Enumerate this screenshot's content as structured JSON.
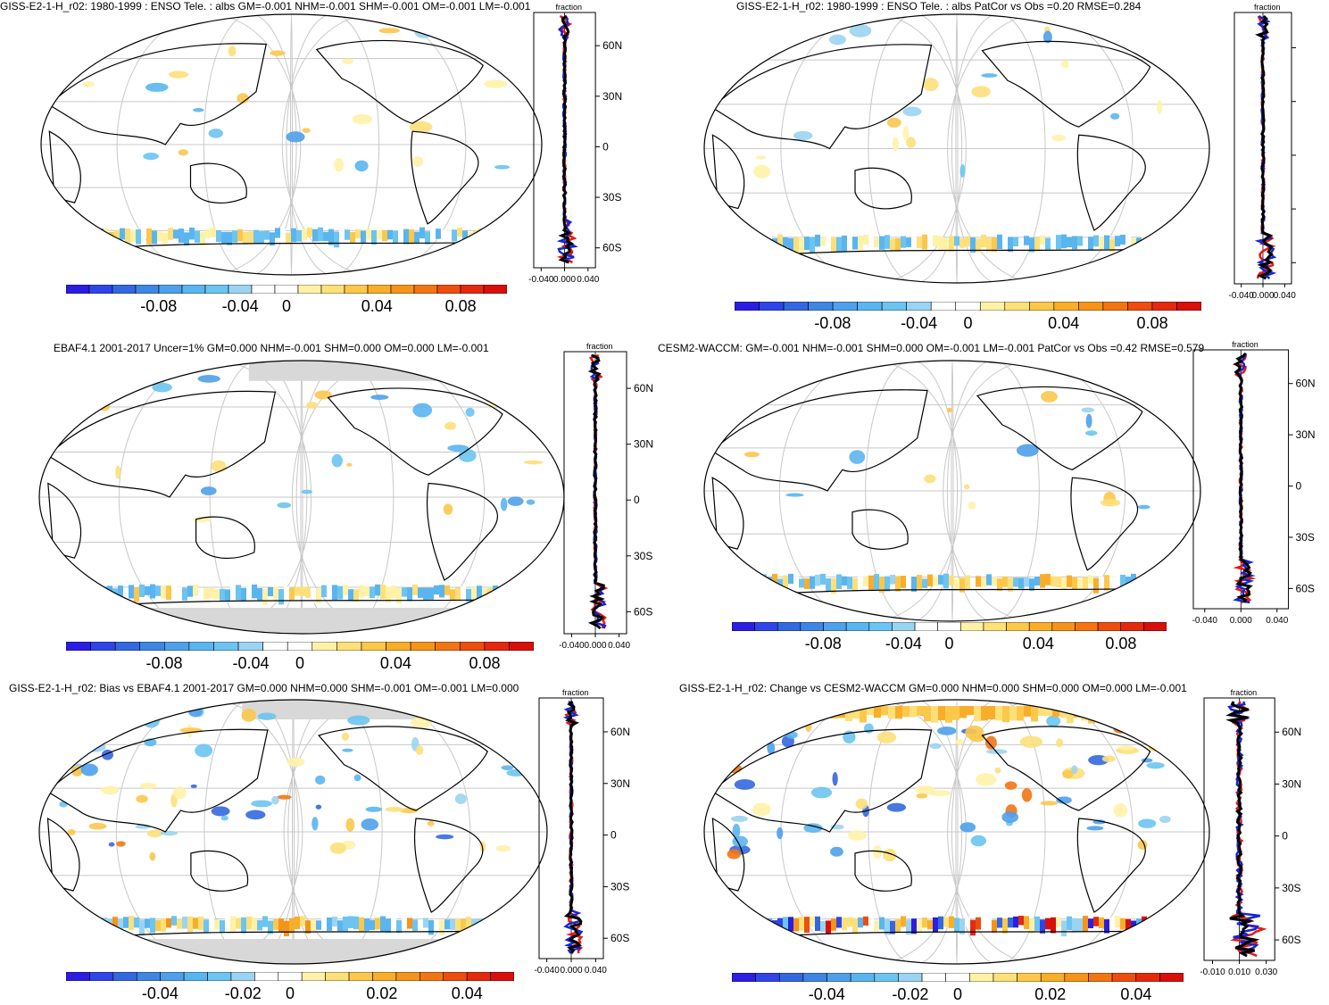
{
  "panels": [
    {
      "title": "GISS-E2-1-H_r02: 1980-1999 : ENSO Tele. : albs GM=-0.001 NHM=-0.001 SHM=-0.001 OM=-0.001 LM=-0.001",
      "zonal_header": "fraction",
      "zonal_lat_labels": [
        "60N",
        "30N",
        "0",
        "30S",
        "60S"
      ],
      "zonal_x_ticks": [
        "-0.040",
        "0.000",
        "0.040"
      ],
      "colorbar_labels": [
        "-0.08",
        "-0.04",
        "0",
        "0.04",
        "0.08"
      ]
    },
    {
      "title": "GISS-E2-1-H_r02: 1980-1999 : ENSO Tele. : albs PatCor vs Obs =0.20 RMSE=0.284",
      "zonal_header": "fraction",
      "zonal_lat_labels": [],
      "zonal_x_ticks": [
        "-0.040",
        "0.000",
        "0.040"
      ],
      "colorbar_labels": [
        "-0.08",
        "-0.04",
        "0",
        "0.04",
        "0.08"
      ]
    },
    {
      "title": "EBAF4.1 2001-2017 Uncer=1% GM=0.000 NHM=-0.001 SHM=0.000 OM=0.000 LM=-0.001",
      "zonal_header": "fraction",
      "zonal_lat_labels": [
        "60N",
        "30N",
        "0",
        "30S",
        "60S"
      ],
      "zonal_x_ticks": [
        "-0.040",
        "0.000",
        "0.040"
      ],
      "colorbar_labels": [
        "-0.08",
        "-0.04",
        "0",
        "0.04",
        "0.08"
      ]
    },
    {
      "title": "CESM2-WACCM: GM=-0.001 NHM=-0.001 SHM=0.000 OM=-0.001 LM=-0.001 PatCor vs Obs =0.42 RMSE=0.579",
      "zonal_header": "fraction",
      "zonal_lat_labels": [
        "60N",
        "30N",
        "0",
        "30S",
        "60S"
      ],
      "zonal_x_ticks": [
        "-0.040",
        "0.000",
        "0.040"
      ],
      "colorbar_labels": [
        "-0.08",
        "-0.04",
        "0",
        "0.04",
        "0.08"
      ]
    },
    {
      "title": "GISS-E2-1-H_r02: Bias vs EBAF4.1 2001-2017 GM=0.000 NHM=0.000 SHM=-0.001 OM=-0.001 LM=0.000",
      "zonal_header": "fraction",
      "zonal_lat_labels": [
        "60N",
        "30N",
        "0",
        "30S",
        "60S"
      ],
      "zonal_x_ticks": [
        "-0.040",
        "0.000",
        "0.040"
      ],
      "colorbar_labels": [
        "-0.04",
        "-0.02",
        "0",
        "0.02",
        "0.04"
      ]
    },
    {
      "title": "GISS-E2-1-H_r02: Change vs CESM2-WACCM GM=0.000 NHM=0.000 SHM=0.000 OM=0.000 LM=-0.001",
      "zonal_header": "fraction",
      "zonal_lat_labels": [
        "60N",
        "30N",
        "0",
        "30S",
        "60S"
      ],
      "zonal_x_ticks": [
        "-0.010",
        "0.010",
        "0.030"
      ],
      "colorbar_labels": [
        "-0.04",
        "-0.02",
        "0",
        "0.02",
        "0.04"
      ]
    }
  ],
  "colors": {
    "palette": [
      "#2b1ee0",
      "#2f45e8",
      "#3468de",
      "#3f86e3",
      "#4fa0ea",
      "#5ab5ef",
      "#6cc4f0",
      "#9ad4f2",
      "#ffffff",
      "#ffffff",
      "#fff2a8",
      "#fde07a",
      "#fbc84c",
      "#f8ae2a",
      "#f5941a",
      "#f27514",
      "#ec4e10",
      "#e32a0e",
      "#d7100c"
    ],
    "land_outline": "#000000",
    "grid": "#c8c8c8",
    "missing": "#d8d8d8",
    "zonal_model": "#e8170f",
    "zonal_obs": "#1226d6",
    "zonal_mean": "#000000"
  }
}
